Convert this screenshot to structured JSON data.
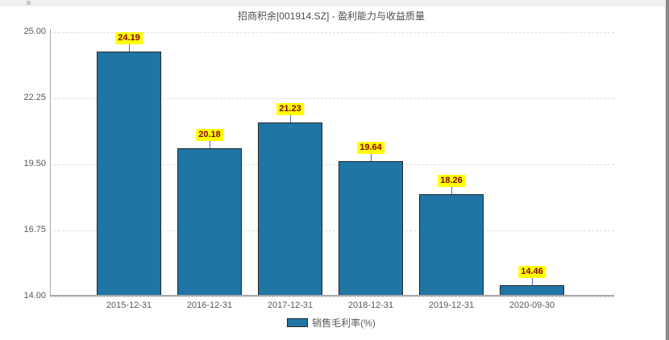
{
  "chart_data": {
    "type": "bar",
    "title": "招商积余[001914.SZ] - 盈利能力与收益质量",
    "categories": [
      "2015-12-31",
      "2016-12-31",
      "2017-12-31",
      "2018-12-31",
      "2019-12-31",
      "2020-09-30"
    ],
    "series": [
      {
        "name": "销售毛利率(%)",
        "values": [
          24.19,
          20.18,
          21.23,
          19.64,
          18.26,
          14.46
        ]
      }
    ],
    "ylim": [
      14.0,
      25.0
    ],
    "y_ticks": [
      25.0,
      22.25,
      19.5,
      16.75,
      14.0
    ],
    "xlabel": "",
    "ylabel": "",
    "grid": true,
    "legend_position": "bottom",
    "value_labels_shown": true
  },
  "colors": {
    "bar_fill": "#1f75a4",
    "bar_border": "#262626",
    "value_label_bg": "#ffff00",
    "value_label_text": "#8b0000",
    "connector": "#4a63cc",
    "gridline": "#dcdcdc",
    "axis_line": "#a9a9a9",
    "tick_text": "#595959",
    "title_text": "#4d4d4d"
  }
}
